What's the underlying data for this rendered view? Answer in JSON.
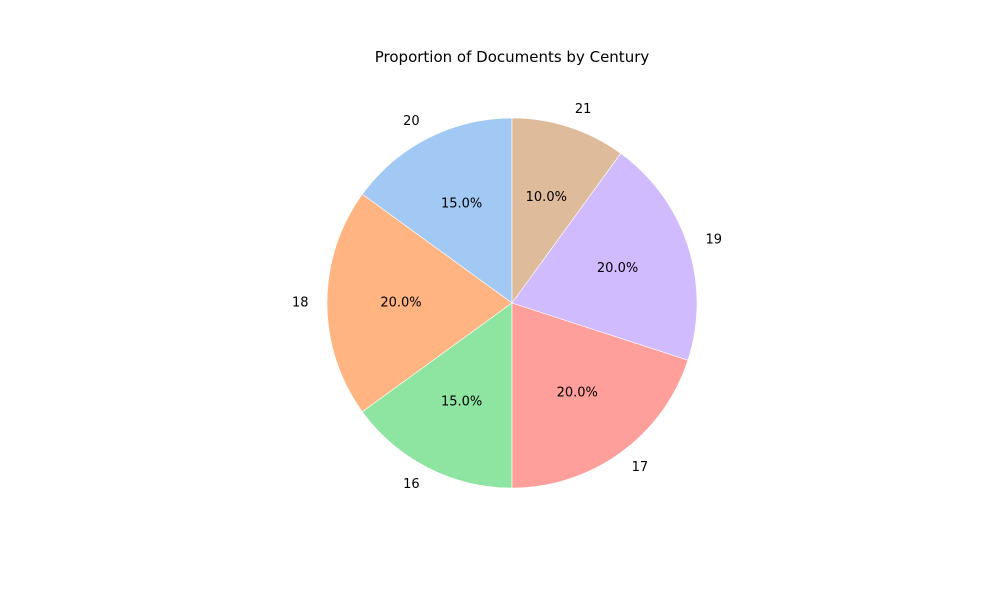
{
  "chart_data": {
    "type": "pie",
    "title": "Proportion of Documents by Century",
    "start_angle_deg": 90,
    "direction": "counterclockwise",
    "slices": [
      {
        "label": "20",
        "value": 15.0,
        "pct_label": "15.0%",
        "color": "#a1c9f4"
      },
      {
        "label": "18",
        "value": 20.0,
        "pct_label": "20.0%",
        "color": "#ffb482"
      },
      {
        "label": "16",
        "value": 15.0,
        "pct_label": "15.0%",
        "color": "#8de5a1"
      },
      {
        "label": "17",
        "value": 20.0,
        "pct_label": "20.0%",
        "color": "#ff9f9b"
      },
      {
        "label": "19",
        "value": 20.0,
        "pct_label": "20.0%",
        "color": "#d0bbff"
      },
      {
        "label": "21",
        "value": 10.0,
        "pct_label": "10.0%",
        "color": "#debb9b"
      }
    ]
  }
}
